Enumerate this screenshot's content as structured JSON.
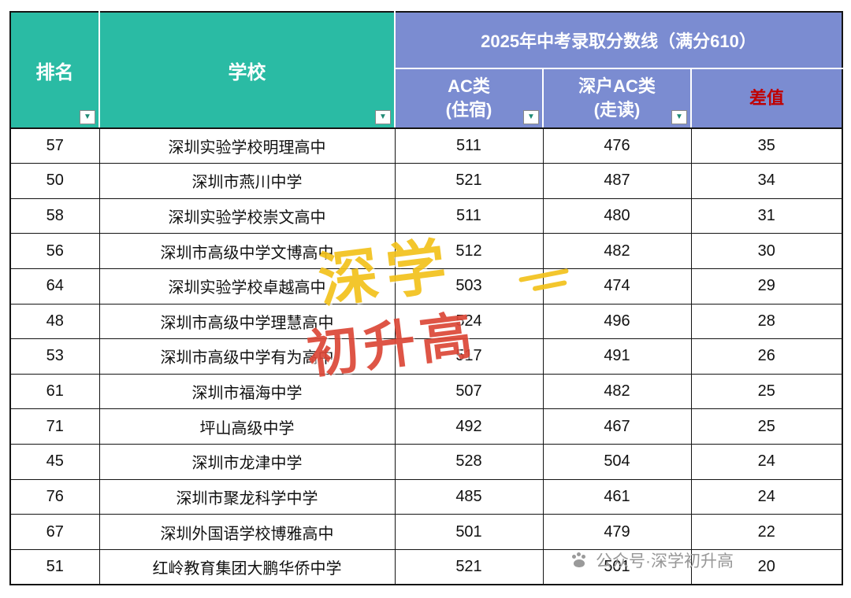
{
  "header": {
    "rank": "排名",
    "school": "学校",
    "ac_line1": "AC类",
    "ac_line2": "(住宿)",
    "dac_line1": "深户AC类",
    "dac_line2": "(走读)",
    "diff": "差值"
  },
  "chart_data": {
    "type": "table",
    "title": "2025年中考录取分数线（满分610）",
    "columns": [
      "排名",
      "学校",
      "AC类(住宿)",
      "深户AC类(走读)",
      "差值"
    ],
    "rows": [
      [
        "57",
        "深圳实验学校明理高中",
        "511",
        "476",
        "35"
      ],
      [
        "50",
        "深圳市燕川中学",
        "521",
        "487",
        "34"
      ],
      [
        "58",
        "深圳实验学校崇文高中",
        "511",
        "480",
        "31"
      ],
      [
        "56",
        "深圳市高级中学文博高中",
        "512",
        "482",
        "30"
      ],
      [
        "64",
        "深圳实验学校卓越高中",
        "503",
        "474",
        "29"
      ],
      [
        "48",
        "深圳市高级中学理慧高中",
        "524",
        "496",
        "28"
      ],
      [
        "53",
        "深圳市高级中学有为高中",
        "517",
        "491",
        "26"
      ],
      [
        "61",
        "深圳市福海中学",
        "507",
        "482",
        "25"
      ],
      [
        "71",
        "坪山高级中学",
        "492",
        "467",
        "25"
      ],
      [
        "45",
        "深圳市龙津中学",
        "528",
        "504",
        "24"
      ],
      [
        "76",
        "深圳市聚龙科学中学",
        "485",
        "461",
        "24"
      ],
      [
        "67",
        "深圳外国语学校博雅高中",
        "501",
        "479",
        "22"
      ],
      [
        "51",
        "红岭教育集团大鹏华侨中学",
        "521",
        "501",
        "20"
      ]
    ]
  },
  "watermark": {
    "line1": "深学",
    "line2": "初升高",
    "footer": "公众号·深学初升高"
  },
  "filter_icon": "▼",
  "colors": {
    "header_teal": "#2ABBA4",
    "header_blue": "#7B8CD1",
    "diff_red": "#C00000"
  }
}
